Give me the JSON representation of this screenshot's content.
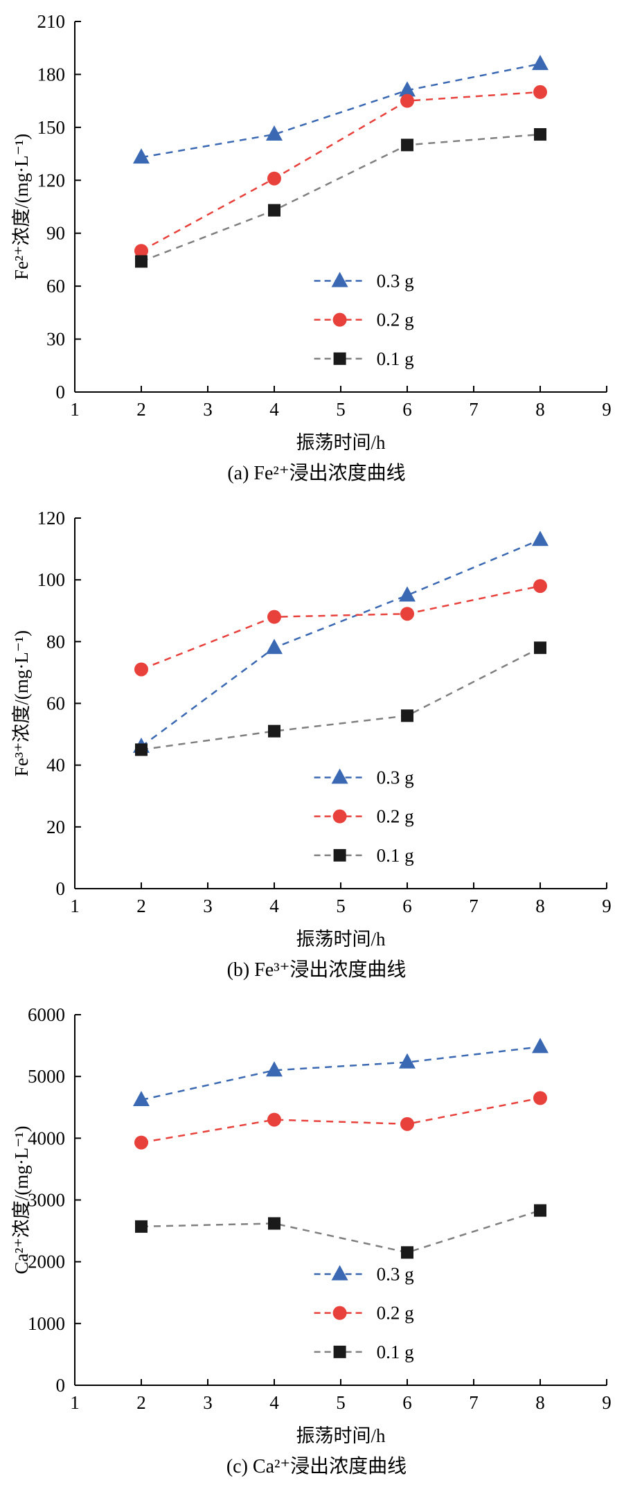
{
  "page": {
    "background": "#ffffff"
  },
  "chart_data": [
    {
      "id": "a",
      "type": "line",
      "caption": "(a) Fe²⁺浸出浓度曲线",
      "xlabel": "振荡时间/h",
      "ylabel": "Fe²⁺浓度/(mg·L⁻¹)",
      "xlim": [
        1,
        9
      ],
      "xticks": [
        1,
        2,
        3,
        4,
        5,
        6,
        7,
        8,
        9
      ],
      "ylim": [
        0,
        210
      ],
      "yticks": [
        0,
        30,
        60,
        90,
        120,
        150,
        180,
        210
      ],
      "x": [
        2,
        4,
        6,
        8
      ],
      "series": [
        {
          "name": "0.3 g",
          "marker": "triangle",
          "color": "#3A68B2",
          "line_color": "#3A68B2",
          "values": [
            133,
            146,
            171,
            186
          ]
        },
        {
          "name": "0.2 g",
          "marker": "circle",
          "color": "#E8413C",
          "line_color": "#E8413C",
          "values": [
            80,
            121,
            165,
            170
          ]
        },
        {
          "name": "0.1 g",
          "marker": "square",
          "color": "#1A1A1A",
          "line_color": "#7F7F7F",
          "values": [
            74,
            103,
            140,
            146
          ]
        }
      ],
      "legend_position": "lower-right",
      "grid": false
    },
    {
      "id": "b",
      "type": "line",
      "caption": "(b) Fe³⁺浸出浓度曲线",
      "xlabel": "振荡时间/h",
      "ylabel": "Fe³⁺浓度/(mg·L⁻¹)",
      "xlim": [
        1,
        9
      ],
      "xticks": [
        1,
        2,
        3,
        4,
        5,
        6,
        7,
        8,
        9
      ],
      "ylim": [
        0,
        120
      ],
      "yticks": [
        0,
        20,
        40,
        60,
        80,
        100,
        120
      ],
      "x": [
        2,
        4,
        6,
        8
      ],
      "series": [
        {
          "name": "0.3 g",
          "marker": "triangle",
          "color": "#3A68B2",
          "line_color": "#3A68B2",
          "values": [
            46,
            78,
            95,
            113
          ]
        },
        {
          "name": "0.2 g",
          "marker": "circle",
          "color": "#E8413C",
          "line_color": "#E8413C",
          "values": [
            71,
            88,
            89,
            98
          ]
        },
        {
          "name": "0.1 g",
          "marker": "square",
          "color": "#1A1A1A",
          "line_color": "#7F7F7F",
          "values": [
            45,
            51,
            56,
            78
          ]
        }
      ],
      "legend_position": "lower-right",
      "grid": false
    },
    {
      "id": "c",
      "type": "line",
      "caption": "(c) Ca²⁺浸出浓度曲线",
      "xlabel": "振荡时间/h",
      "ylabel": "Ca²⁺浓度/(mg·L⁻¹)",
      "xlim": [
        1,
        9
      ],
      "xticks": [
        1,
        2,
        3,
        4,
        5,
        6,
        7,
        8,
        9
      ],
      "ylim": [
        0,
        6000
      ],
      "yticks": [
        0,
        1000,
        2000,
        3000,
        4000,
        5000,
        6000
      ],
      "x": [
        2,
        4,
        6,
        8
      ],
      "series": [
        {
          "name": "0.3 g",
          "marker": "triangle",
          "color": "#3A68B2",
          "line_color": "#3A68B2",
          "values": [
            4620,
            5100,
            5230,
            5480
          ]
        },
        {
          "name": "0.2 g",
          "marker": "circle",
          "color": "#E8413C",
          "line_color": "#E8413C",
          "values": [
            3930,
            4300,
            4230,
            4650
          ]
        },
        {
          "name": "0.1 g",
          "marker": "square",
          "color": "#1A1A1A",
          "line_color": "#7F7F7F",
          "values": [
            2570,
            2620,
            2150,
            2830
          ]
        }
      ],
      "legend_position": "lower-right",
      "grid": false
    }
  ]
}
